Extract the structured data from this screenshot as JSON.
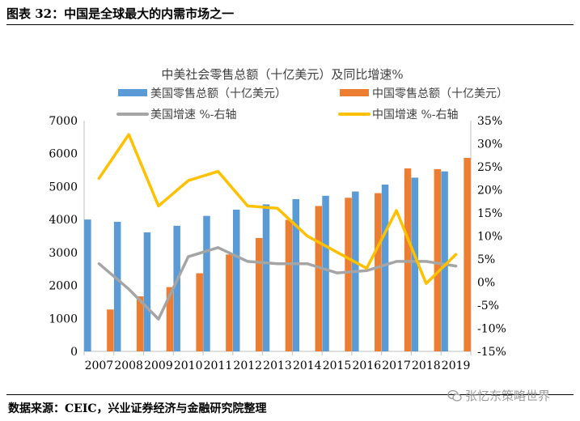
{
  "figure": {
    "title": "图表 32：中国是全球最大的内需市场之一",
    "source": "数据来源：CEIC，兴业证券经济与金融研究院整理",
    "watermark": "张忆东策略世界"
  },
  "chart_data": {
    "type": "bar",
    "title": "中美社会零售总额（十亿美元）及同比增速%",
    "categories": [
      "2007",
      "2008",
      "2009",
      "2010",
      "2011",
      "2012",
      "2013",
      "2014",
      "2015",
      "2016",
      "2017",
      "2018",
      "2019"
    ],
    "series": [
      {
        "name": "美国零售总额（十亿美元）",
        "kind": "bar",
        "axis": "left",
        "color": "#5b9bd5",
        "values": [
          4000,
          3930,
          3610,
          3810,
          4110,
          4300,
          4460,
          4620,
          4720,
          4850,
          5060,
          5270,
          5460
        ]
      },
      {
        "name": "中国零售总额（十亿美元）",
        "kind": "bar",
        "axis": "left",
        "color": "#ed7d31",
        "values": [
          1270,
          1670,
          1950,
          2370,
          2940,
          3440,
          3990,
          4410,
          4660,
          4800,
          5550,
          5530,
          5870
        ]
      },
      {
        "name": "美国增速 %-右轴",
        "kind": "line",
        "axis": "right",
        "color": "#a5a5a5",
        "values": [
          4.0,
          -1.5,
          -8.0,
          5.5,
          7.5,
          4.5,
          4.0,
          4.0,
          2.0,
          2.5,
          4.5,
          4.5,
          3.5
        ]
      },
      {
        "name": "中国增速 %-右轴",
        "kind": "line",
        "axis": "right",
        "color": "#ffc000",
        "values": [
          22.5,
          32.0,
          16.5,
          22.0,
          24.0,
          16.5,
          16.0,
          10.0,
          6.5,
          3.0,
          15.5,
          -0.3,
          6.0
        ]
      }
    ],
    "y_left": {
      "min": 0,
      "max": 7000,
      "step": 1000,
      "tick_labels": [
        "0",
        "1000",
        "2000",
        "3000",
        "4000",
        "5000",
        "6000",
        "7000"
      ]
    },
    "y_right": {
      "min": -15,
      "max": 35,
      "step": 5,
      "tick_labels": [
        "-15%",
        "-10%",
        "-5%",
        "0%",
        "5%",
        "10%",
        "15%",
        "20%",
        "25%",
        "30%",
        "35%"
      ]
    },
    "legend_position": "top",
    "grid": false
  }
}
